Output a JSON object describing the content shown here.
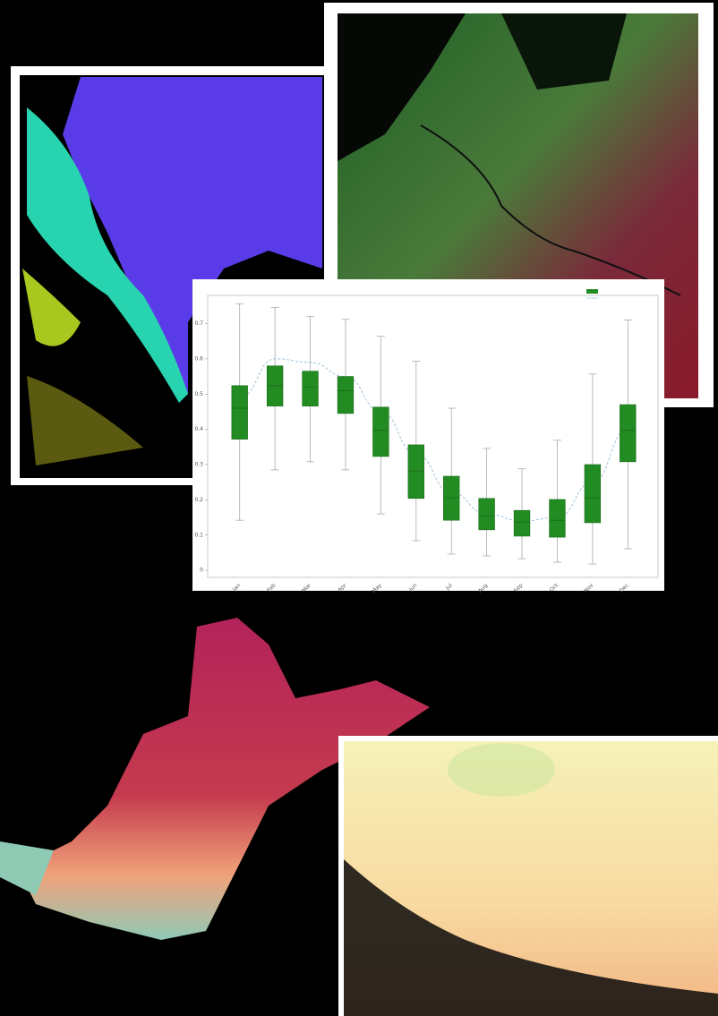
{
  "chart_data": {
    "type": "box",
    "categories": [
      "Jan",
      "Feb",
      "Mar",
      "Apr",
      "May",
      "Jun",
      "Jul",
      "Aug",
      "Sep",
      "Oct",
      "Nov",
      "Dec"
    ],
    "boxes": [
      {
        "min": 0.142,
        "q1": 0.372,
        "median": 0.46,
        "q3": 0.524,
        "max": 0.756
      },
      {
        "min": 0.285,
        "q1": 0.466,
        "median": 0.524,
        "q3": 0.58,
        "max": 0.746
      },
      {
        "min": 0.308,
        "q1": 0.466,
        "median": 0.52,
        "q3": 0.565,
        "max": 0.72
      },
      {
        "min": 0.285,
        "q1": 0.445,
        "median": 0.51,
        "q3": 0.55,
        "max": 0.712
      },
      {
        "min": 0.16,
        "q1": 0.323,
        "median": 0.397,
        "q3": 0.463,
        "max": 0.664
      },
      {
        "min": 0.084,
        "q1": 0.204,
        "median": 0.282,
        "q3": 0.356,
        "max": 0.593
      },
      {
        "min": 0.046,
        "q1": 0.142,
        "median": 0.206,
        "q3": 0.267,
        "max": 0.46
      },
      {
        "min": 0.041,
        "q1": 0.115,
        "median": 0.155,
        "q3": 0.204,
        "max": 0.346
      },
      {
        "min": 0.033,
        "q1": 0.097,
        "median": 0.137,
        "q3": 0.17,
        "max": 0.288
      },
      {
        "min": 0.023,
        "q1": 0.094,
        "median": 0.142,
        "q3": 0.201,
        "max": 0.369
      },
      {
        "min": 0.018,
        "q1": 0.135,
        "median": 0.206,
        "q3": 0.3,
        "max": 0.557
      },
      {
        "min": 0.061,
        "q1": 0.308,
        "median": 0.397,
        "q3": 0.47,
        "max": 0.71
      }
    ],
    "color": "#228b22",
    "trend": {
      "color": "#9ec3dd",
      "values": [
        0.49,
        0.6,
        0.59,
        0.55,
        0.45,
        0.33,
        0.22,
        0.16,
        0.14,
        0.15,
        0.25,
        0.4
      ]
    },
    "ylim": [
      -0.02,
      0.78
    ],
    "yticks": [
      0,
      0.1,
      0.2,
      0.3,
      0.4,
      0.5,
      0.6,
      0.7
    ],
    "grid": false
  }
}
